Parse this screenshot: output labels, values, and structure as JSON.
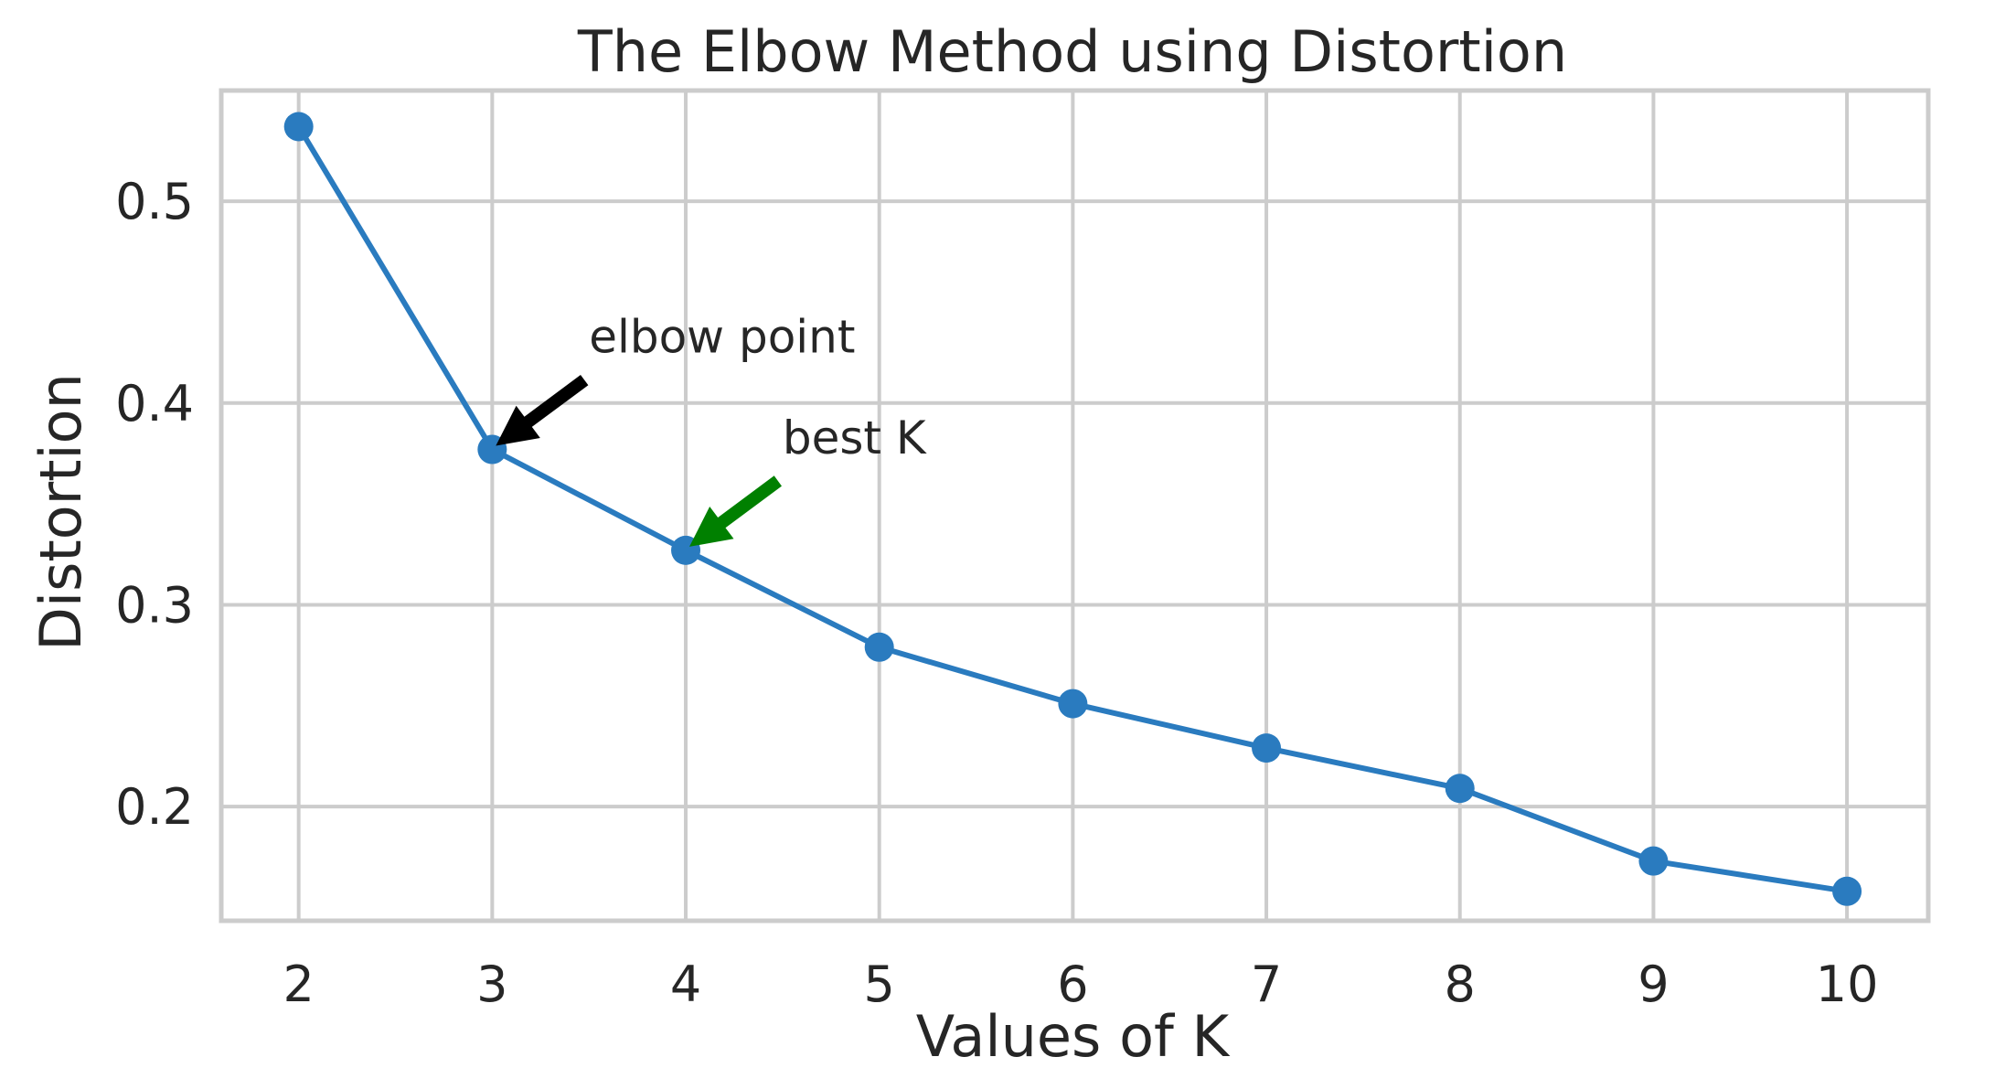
{
  "chart_data": {
    "type": "line",
    "title": "The Elbow Method using Distortion",
    "xlabel": "Values of K",
    "ylabel": "Distortion",
    "x": [
      2,
      3,
      4,
      5,
      6,
      7,
      8,
      9,
      10
    ],
    "series": [
      {
        "values": [
          0.537,
          0.377,
          0.327,
          0.279,
          0.251,
          0.229,
          0.209,
          0.173,
          0.158
        ],
        "color": "#2a7bbf",
        "marker": "circle"
      }
    ],
    "xlim": [
      1.6,
      10.42
    ],
    "ylim": [
      0.1434,
      0.5549
    ],
    "xticks": [
      2,
      3,
      4,
      5,
      6,
      7,
      8,
      9,
      10
    ],
    "yticks": [
      0.2,
      0.3,
      0.4,
      0.5
    ],
    "ytick_labels": [
      "0.2",
      "0.3",
      "0.4",
      "0.5"
    ],
    "grid": true,
    "grid_color": "#cccccc",
    "frame_color": "#cccccc",
    "annotations": [
      {
        "text": "elbow point",
        "point": [
          3,
          0.377
        ],
        "text_at": [
          3.5,
          0.425
        ],
        "arrow_color": "#000000"
      },
      {
        "text": "best K",
        "point": [
          4,
          0.327
        ],
        "text_at": [
          4.5,
          0.375
        ],
        "arrow_color": "#008000"
      }
    ]
  }
}
